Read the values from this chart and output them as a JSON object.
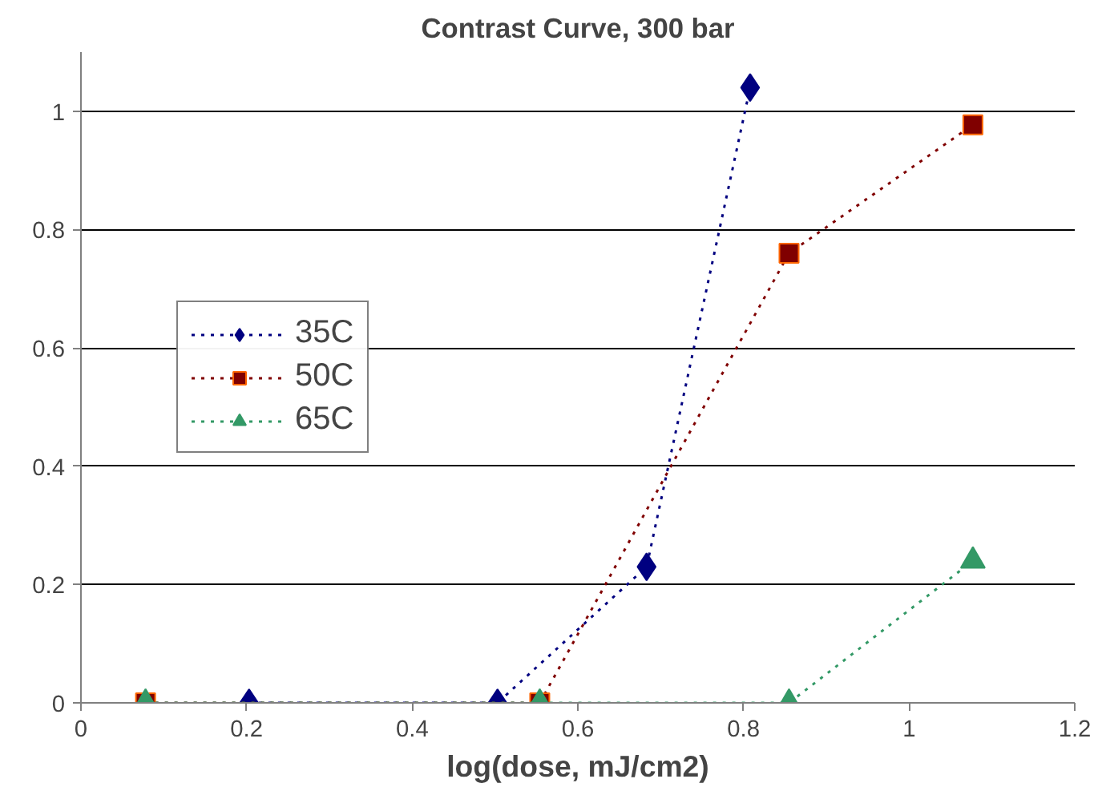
{
  "chart_data": {
    "type": "line",
    "title": "Contrast Curve, 300 bar",
    "xlabel": "log(dose, mJ/cm2)",
    "xlim": [
      0,
      1.2
    ],
    "xticks": [
      0,
      0.2,
      0.4,
      0.6,
      0.8,
      1,
      1.2
    ],
    "ylim": [
      0,
      1.1
    ],
    "yticks": [
      0,
      0.2,
      0.4,
      0.6,
      0.8,
      1
    ],
    "grid": "y",
    "legend": "left",
    "line_style": "dotted",
    "series": [
      {
        "name": "35C",
        "color": "#000080",
        "marker": "diamond",
        "x": [
          0.203,
          0.503,
          0.683,
          0.808
        ],
        "values": [
          0,
          0,
          0.23,
          1.04
        ]
      },
      {
        "name": "50C",
        "color": "#800000",
        "marker": "square",
        "x": [
          0.078,
          0.554,
          0.855,
          1.077
        ],
        "values": [
          0,
          0,
          0.76,
          0.977
        ]
      },
      {
        "name": "65C",
        "color": "#339966",
        "marker": "triangle",
        "x": [
          0.078,
          0.554,
          0.855,
          1.077
        ],
        "values": [
          0,
          0,
          0,
          0.24
        ]
      }
    ]
  }
}
